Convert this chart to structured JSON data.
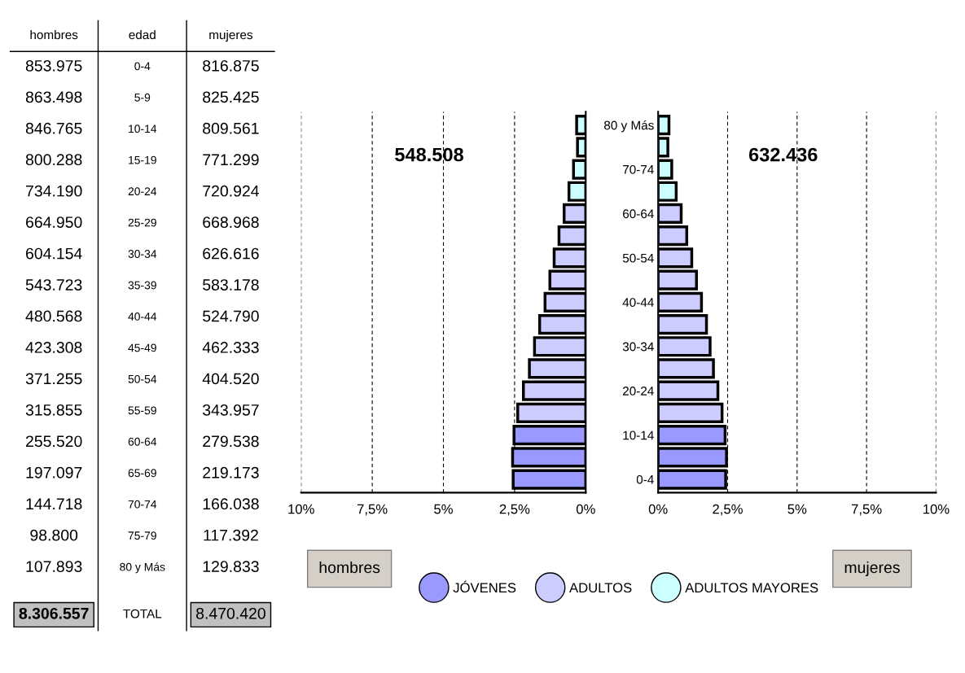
{
  "chart_data": [
    {
      "type": "other",
      "xlabel": "edad",
      "categories": [
        "0-4",
        "5-9",
        "10-14",
        "15-19",
        "20-24",
        "25-29",
        "30-34",
        "35-39",
        "40-44",
        "45-49",
        "50-54",
        "55-59",
        "60-64",
        "65-69",
        "70-74",
        "75-79",
        "80 y Más"
      ],
      "series": [
        {
          "name": "hombres",
          "values": [
            853975,
            863498,
            846765,
            800288,
            734190,
            664950,
            604154,
            543723,
            480568,
            423308,
            371255,
            315855,
            255520,
            197097,
            144718,
            98800,
            107893
          ],
          "value_labels": [
            "853.975",
            "863.498",
            "846.765",
            "800.288",
            "734.190",
            "664.950",
            "604.154",
            "543.723",
            "480.568",
            "423.308",
            "371.255",
            "315.855",
            "255.520",
            "197.097",
            "144.718",
            "98.800",
            "107.893"
          ]
        },
        {
          "name": "mujeres",
          "values": [
            816875,
            825425,
            809561,
            771299,
            720924,
            668968,
            626616,
            583178,
            524790,
            462333,
            404520,
            343957,
            279538,
            219173,
            166038,
            117392,
            129833
          ],
          "value_labels": [
            "816.875",
            "825.425",
            "809.561",
            "771.299",
            "720.924",
            "668.968",
            "626.616",
            "583.178",
            "524.790",
            "462.333",
            "404.520",
            "343.957",
            "279.538",
            "219.173",
            "166.038",
            "117.392",
            "129.833"
          ]
        }
      ],
      "totals": [
        "8.306.557",
        "8.470.420"
      ],
      "annotations": [
        "TOTAL"
      ]
    },
    {
      "type": "bar",
      "orientation": "horizontal",
      "xlabel": "hombres",
      "categories": [
        null,
        null,
        null,
        null,
        null,
        null,
        null,
        null,
        null,
        null,
        null,
        null,
        null,
        null,
        null,
        null,
        null
      ],
      "series": [
        {
          "color": "#ccffff",
          "values": [
            0.32,
            0.29,
            0.43,
            0.59,
            null,
            null,
            null,
            null,
            null,
            null,
            null,
            null,
            null,
            null,
            null,
            null,
            null
          ]
        },
        {
          "color": "#ccccff",
          "values": [
            null,
            null,
            null,
            null,
            0.76,
            0.94,
            1.11,
            1.26,
            1.43,
            1.62,
            1.8,
            1.98,
            2.19,
            2.39,
            null,
            null,
            null
          ]
        },
        {
          "color": "#9999ff",
          "values": [
            null,
            null,
            null,
            null,
            null,
            null,
            null,
            null,
            null,
            null,
            null,
            null,
            null,
            null,
            2.52,
            2.57,
            2.55
          ]
        }
      ],
      "xlim": [
        10,
        0
      ],
      "xticks": [
        {
          "value": 10,
          "label": "10%"
        },
        {
          "value": 7.5,
          "label": "7,5%"
        },
        {
          "value": 5,
          "label": "5%"
        },
        {
          "value": 2.5,
          "label": "2,5%"
        },
        {
          "value": 0,
          "label": "0%"
        }
      ],
      "grid": "x",
      "tick_labels": "x",
      "annotations": [
        "548.508"
      ]
    },
    {
      "type": "bar",
      "orientation": "horizontal",
      "xlabel": "mujeres",
      "categories": [
        "80 y Más",
        null,
        "70-74",
        null,
        "60-64",
        null,
        "50-54",
        null,
        "40-44",
        null,
        "30-34",
        null,
        "20-24",
        null,
        "10-14",
        null,
        "0-4"
      ],
      "series": [
        {
          "name": "ADULTOS MAYORES",
          "color": "#ccffff",
          "values": [
            0.39,
            0.35,
            0.49,
            0.65,
            null,
            null,
            null,
            null,
            null,
            null,
            null,
            null,
            null,
            null,
            null,
            null,
            null
          ]
        },
        {
          "name": "ADULTOS",
          "color": "#ccccff",
          "values": [
            null,
            null,
            null,
            null,
            0.83,
            1.03,
            1.21,
            1.38,
            1.56,
            1.74,
            1.87,
            1.99,
            2.15,
            2.3,
            null,
            null,
            null
          ]
        },
        {
          "name": "JÓVENES",
          "color": "#9999ff",
          "values": [
            null,
            null,
            null,
            null,
            null,
            null,
            null,
            null,
            null,
            null,
            null,
            null,
            null,
            null,
            2.41,
            2.46,
            2.43
          ]
        }
      ],
      "xlim": [
        0,
        10
      ],
      "xticks": [
        {
          "value": 0,
          "label": "0%"
        },
        {
          "value": 2.5,
          "label": "2,5%"
        },
        {
          "value": 5,
          "label": "5%"
        },
        {
          "value": 7.5,
          "label": "7,5%"
        },
        {
          "value": 10,
          "label": "10%"
        }
      ],
      "grid": "x",
      "legend": "bottom",
      "annotations": [
        "632.436"
      ]
    }
  ]
}
